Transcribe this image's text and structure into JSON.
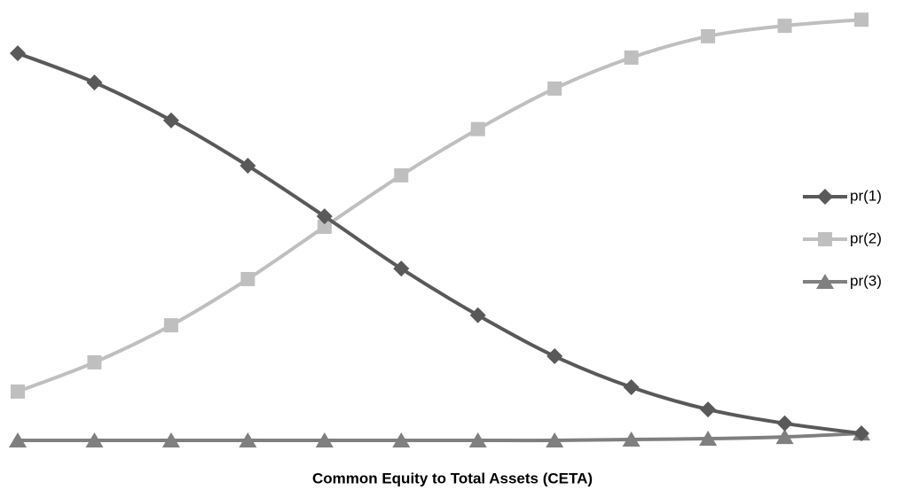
{
  "chart_data": {
    "type": "line",
    "x_label": "Common Equity to Total Assets  (CETA)",
    "categories": [
      null,
      null,
      null,
      null,
      null,
      null,
      null,
      null,
      null,
      null,
      null,
      null
    ],
    "series": [
      {
        "name": "pr(1)",
        "color": "#595959",
        "marker": "diamond",
        "values": [
          0.888,
          0.821,
          0.734,
          0.63,
          0.514,
          0.394,
          0.287,
          0.193,
          0.122,
          0.071,
          0.039,
          0.016
        ]
      },
      {
        "name": "pr(2)",
        "color": "#bfbfbf",
        "marker": "square",
        "values": [
          0.112,
          0.179,
          0.264,
          0.37,
          0.49,
          0.608,
          0.714,
          0.807,
          0.878,
          0.927,
          0.951,
          0.965
        ]
      },
      {
        "name": "pr(3)",
        "color": "#7f7f7f",
        "marker": "triangle",
        "values": [
          0,
          0,
          0,
          0,
          0,
          0,
          0,
          0,
          0.002,
          0.004,
          0.008,
          0.016
        ]
      }
    ],
    "ylim": [
      0,
      1
    ],
    "legend": "right"
  }
}
